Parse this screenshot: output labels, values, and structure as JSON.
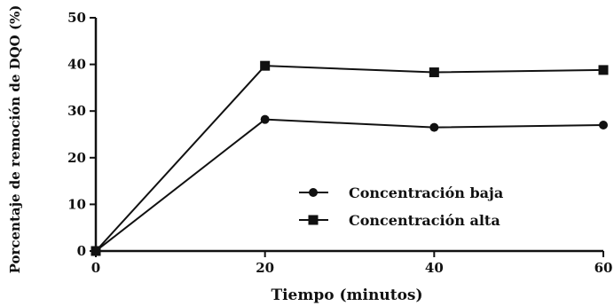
{
  "chart_data": {
    "type": "line",
    "xlabel": "Tiempo (minutos)",
    "ylabel": "Porcentaje de remoción de DQO (%)",
    "x": [
      0,
      20,
      40,
      60
    ],
    "xlim": [
      0,
      60
    ],
    "ylim": [
      0,
      50
    ],
    "xticks": [
      "0",
      "20",
      "40",
      "60"
    ],
    "yticks": [
      "0",
      "10",
      "20",
      "30",
      "40",
      "50"
    ],
    "grid": false,
    "legend_position": "lower-right",
    "series": [
      {
        "name": "Concentración baja",
        "marker": "circle",
        "values": [
          0,
          28.2,
          26.5,
          27.0
        ]
      },
      {
        "name": "Concentración alta",
        "marker": "square",
        "values": [
          0,
          39.7,
          38.3,
          38.8
        ]
      }
    ]
  }
}
